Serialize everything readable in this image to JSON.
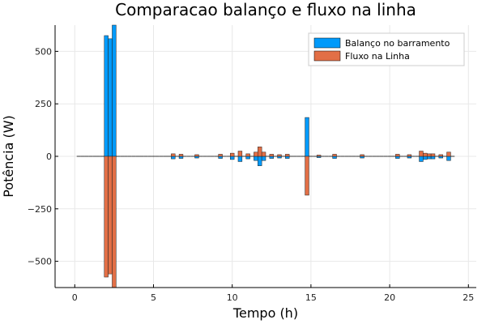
{
  "chart_data": {
    "type": "bar",
    "title": "Comparacao balanço e fluxo na linha",
    "xlabel": "Tempo (h)",
    "ylabel": "Potência (W)",
    "xlim": [
      -1.25,
      25.5
    ],
    "ylim": [
      -625,
      625
    ],
    "xticks": [
      0,
      5,
      10,
      15,
      20,
      25
    ],
    "xtick_labels": [
      "0",
      "5",
      "10",
      "15",
      "20",
      "25"
    ],
    "yticks": [
      -500,
      -250,
      0,
      250,
      500
    ],
    "ytick_labels": [
      "−500",
      "−250",
      "0",
      "250",
      "500"
    ],
    "grid": true,
    "legend_position": "top-right",
    "bar_width": 0.25,
    "series": [
      {
        "name": "Balanço no barramento",
        "color": "#009AFA",
        "points": [
          {
            "x": 2.0,
            "y": 575
          },
          {
            "x": 2.25,
            "y": 560
          },
          {
            "x": 2.5,
            "y": 630
          },
          {
            "x": 6.25,
            "y": -12
          },
          {
            "x": 6.75,
            "y": -10
          },
          {
            "x": 7.75,
            "y": -8
          },
          {
            "x": 9.25,
            "y": -10
          },
          {
            "x": 10.0,
            "y": -15
          },
          {
            "x": 10.5,
            "y": -25
          },
          {
            "x": 11.0,
            "y": -12
          },
          {
            "x": 11.5,
            "y": -20
          },
          {
            "x": 11.75,
            "y": -45
          },
          {
            "x": 12.0,
            "y": -20
          },
          {
            "x": 12.5,
            "y": -10
          },
          {
            "x": 13.0,
            "y": -8
          },
          {
            "x": 13.5,
            "y": -10
          },
          {
            "x": 14.75,
            "y": 185
          },
          {
            "x": 15.5,
            "y": -6
          },
          {
            "x": 16.5,
            "y": -10
          },
          {
            "x": 18.25,
            "y": -8
          },
          {
            "x": 20.5,
            "y": -10
          },
          {
            "x": 21.25,
            "y": -8
          },
          {
            "x": 22.0,
            "y": -25
          },
          {
            "x": 22.25,
            "y": -15
          },
          {
            "x": 22.5,
            "y": -12
          },
          {
            "x": 22.75,
            "y": -12
          },
          {
            "x": 23.25,
            "y": -8
          },
          {
            "x": 23.75,
            "y": -20
          }
        ]
      },
      {
        "name": "Fluxo na Linha",
        "color": "#E26F46",
        "points": [
          {
            "x": 2.0,
            "y": -575
          },
          {
            "x": 2.25,
            "y": -560
          },
          {
            "x": 2.5,
            "y": -630
          },
          {
            "x": 6.25,
            "y": 12
          },
          {
            "x": 6.75,
            "y": 10
          },
          {
            "x": 7.75,
            "y": 8
          },
          {
            "x": 9.25,
            "y": 10
          },
          {
            "x": 10.0,
            "y": 15
          },
          {
            "x": 10.5,
            "y": 25
          },
          {
            "x": 11.0,
            "y": 12
          },
          {
            "x": 11.5,
            "y": 20
          },
          {
            "x": 11.75,
            "y": 45
          },
          {
            "x": 12.0,
            "y": 20
          },
          {
            "x": 12.5,
            "y": 10
          },
          {
            "x": 13.0,
            "y": 8
          },
          {
            "x": 13.5,
            "y": 10
          },
          {
            "x": 14.75,
            "y": -185
          },
          {
            "x": 15.5,
            "y": 6
          },
          {
            "x": 16.5,
            "y": 10
          },
          {
            "x": 18.25,
            "y": 8
          },
          {
            "x": 20.5,
            "y": 10
          },
          {
            "x": 21.25,
            "y": 8
          },
          {
            "x": 22.0,
            "y": 25
          },
          {
            "x": 22.25,
            "y": 15
          },
          {
            "x": 22.5,
            "y": 12
          },
          {
            "x": 22.75,
            "y": 12
          },
          {
            "x": 23.25,
            "y": 8
          },
          {
            "x": 23.75,
            "y": 20
          }
        ]
      }
    ]
  }
}
